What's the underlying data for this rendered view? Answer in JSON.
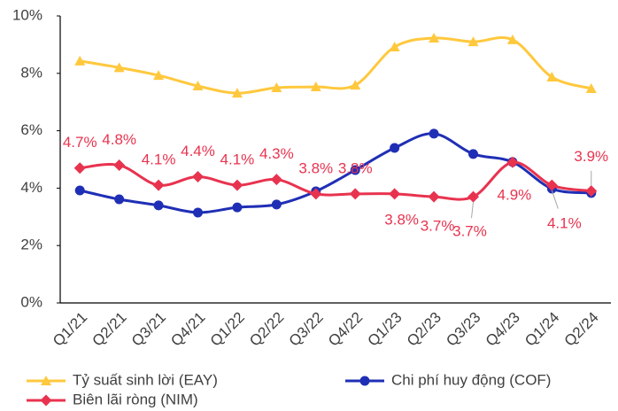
{
  "chart_data": {
    "type": "line",
    "categories": [
      "Q1/21",
      "Q2/21",
      "Q3/21",
      "Q4/21",
      "Q1/22",
      "Q2/22",
      "Q3/22",
      "Q4/22",
      "Q1/23",
      "Q2/23",
      "Q3/23",
      "Q4/23",
      "Q1/24",
      "Q2/24"
    ],
    "series": [
      {
        "name": "Tỷ suất sinh lời (EAY)",
        "color": "#ffc83d",
        "marker": "triangle",
        "values": [
          8.43,
          8.2,
          7.93,
          7.56,
          7.31,
          7.5,
          7.53,
          7.59,
          8.92,
          9.23,
          9.1,
          9.17,
          7.87,
          7.47
        ]
      },
      {
        "name": "Chi phí huy động (COF)",
        "color": "#1f2fb5",
        "marker": "circle",
        "values": [
          3.92,
          3.61,
          3.4,
          3.15,
          3.33,
          3.43,
          3.89,
          4.63,
          5.4,
          5.9,
          5.19,
          4.91,
          3.98,
          3.83
        ]
      },
      {
        "name": "Biên lãi ròng (NIM)",
        "color": "#e8334f",
        "marker": "diamond",
        "values": [
          4.7,
          4.8,
          4.1,
          4.4,
          4.1,
          4.3,
          3.8,
          3.8,
          3.8,
          3.7,
          3.7,
          4.9,
          4.1,
          3.9
        ],
        "value_labels": [
          "4.7%",
          "4.8%",
          "4.1%",
          "4.4%",
          "4.1%",
          "4.3%",
          "3.8%",
          "3.8%",
          "3.8%",
          "3.7%",
          "3.7%",
          "4.9%",
          "4.1%",
          "3.9%"
        ]
      }
    ],
    "ylim": [
      0,
      10
    ],
    "yticks": [
      {
        "value": 0,
        "label": "0%"
      },
      {
        "value": 2,
        "label": "2%"
      },
      {
        "value": 4,
        "label": "4%"
      },
      {
        "value": 6,
        "label": "6%"
      },
      {
        "value": 8,
        "label": "8%"
      },
      {
        "value": 10,
        "label": "10%"
      }
    ],
    "grid": false,
    "legend": "bottom"
  }
}
